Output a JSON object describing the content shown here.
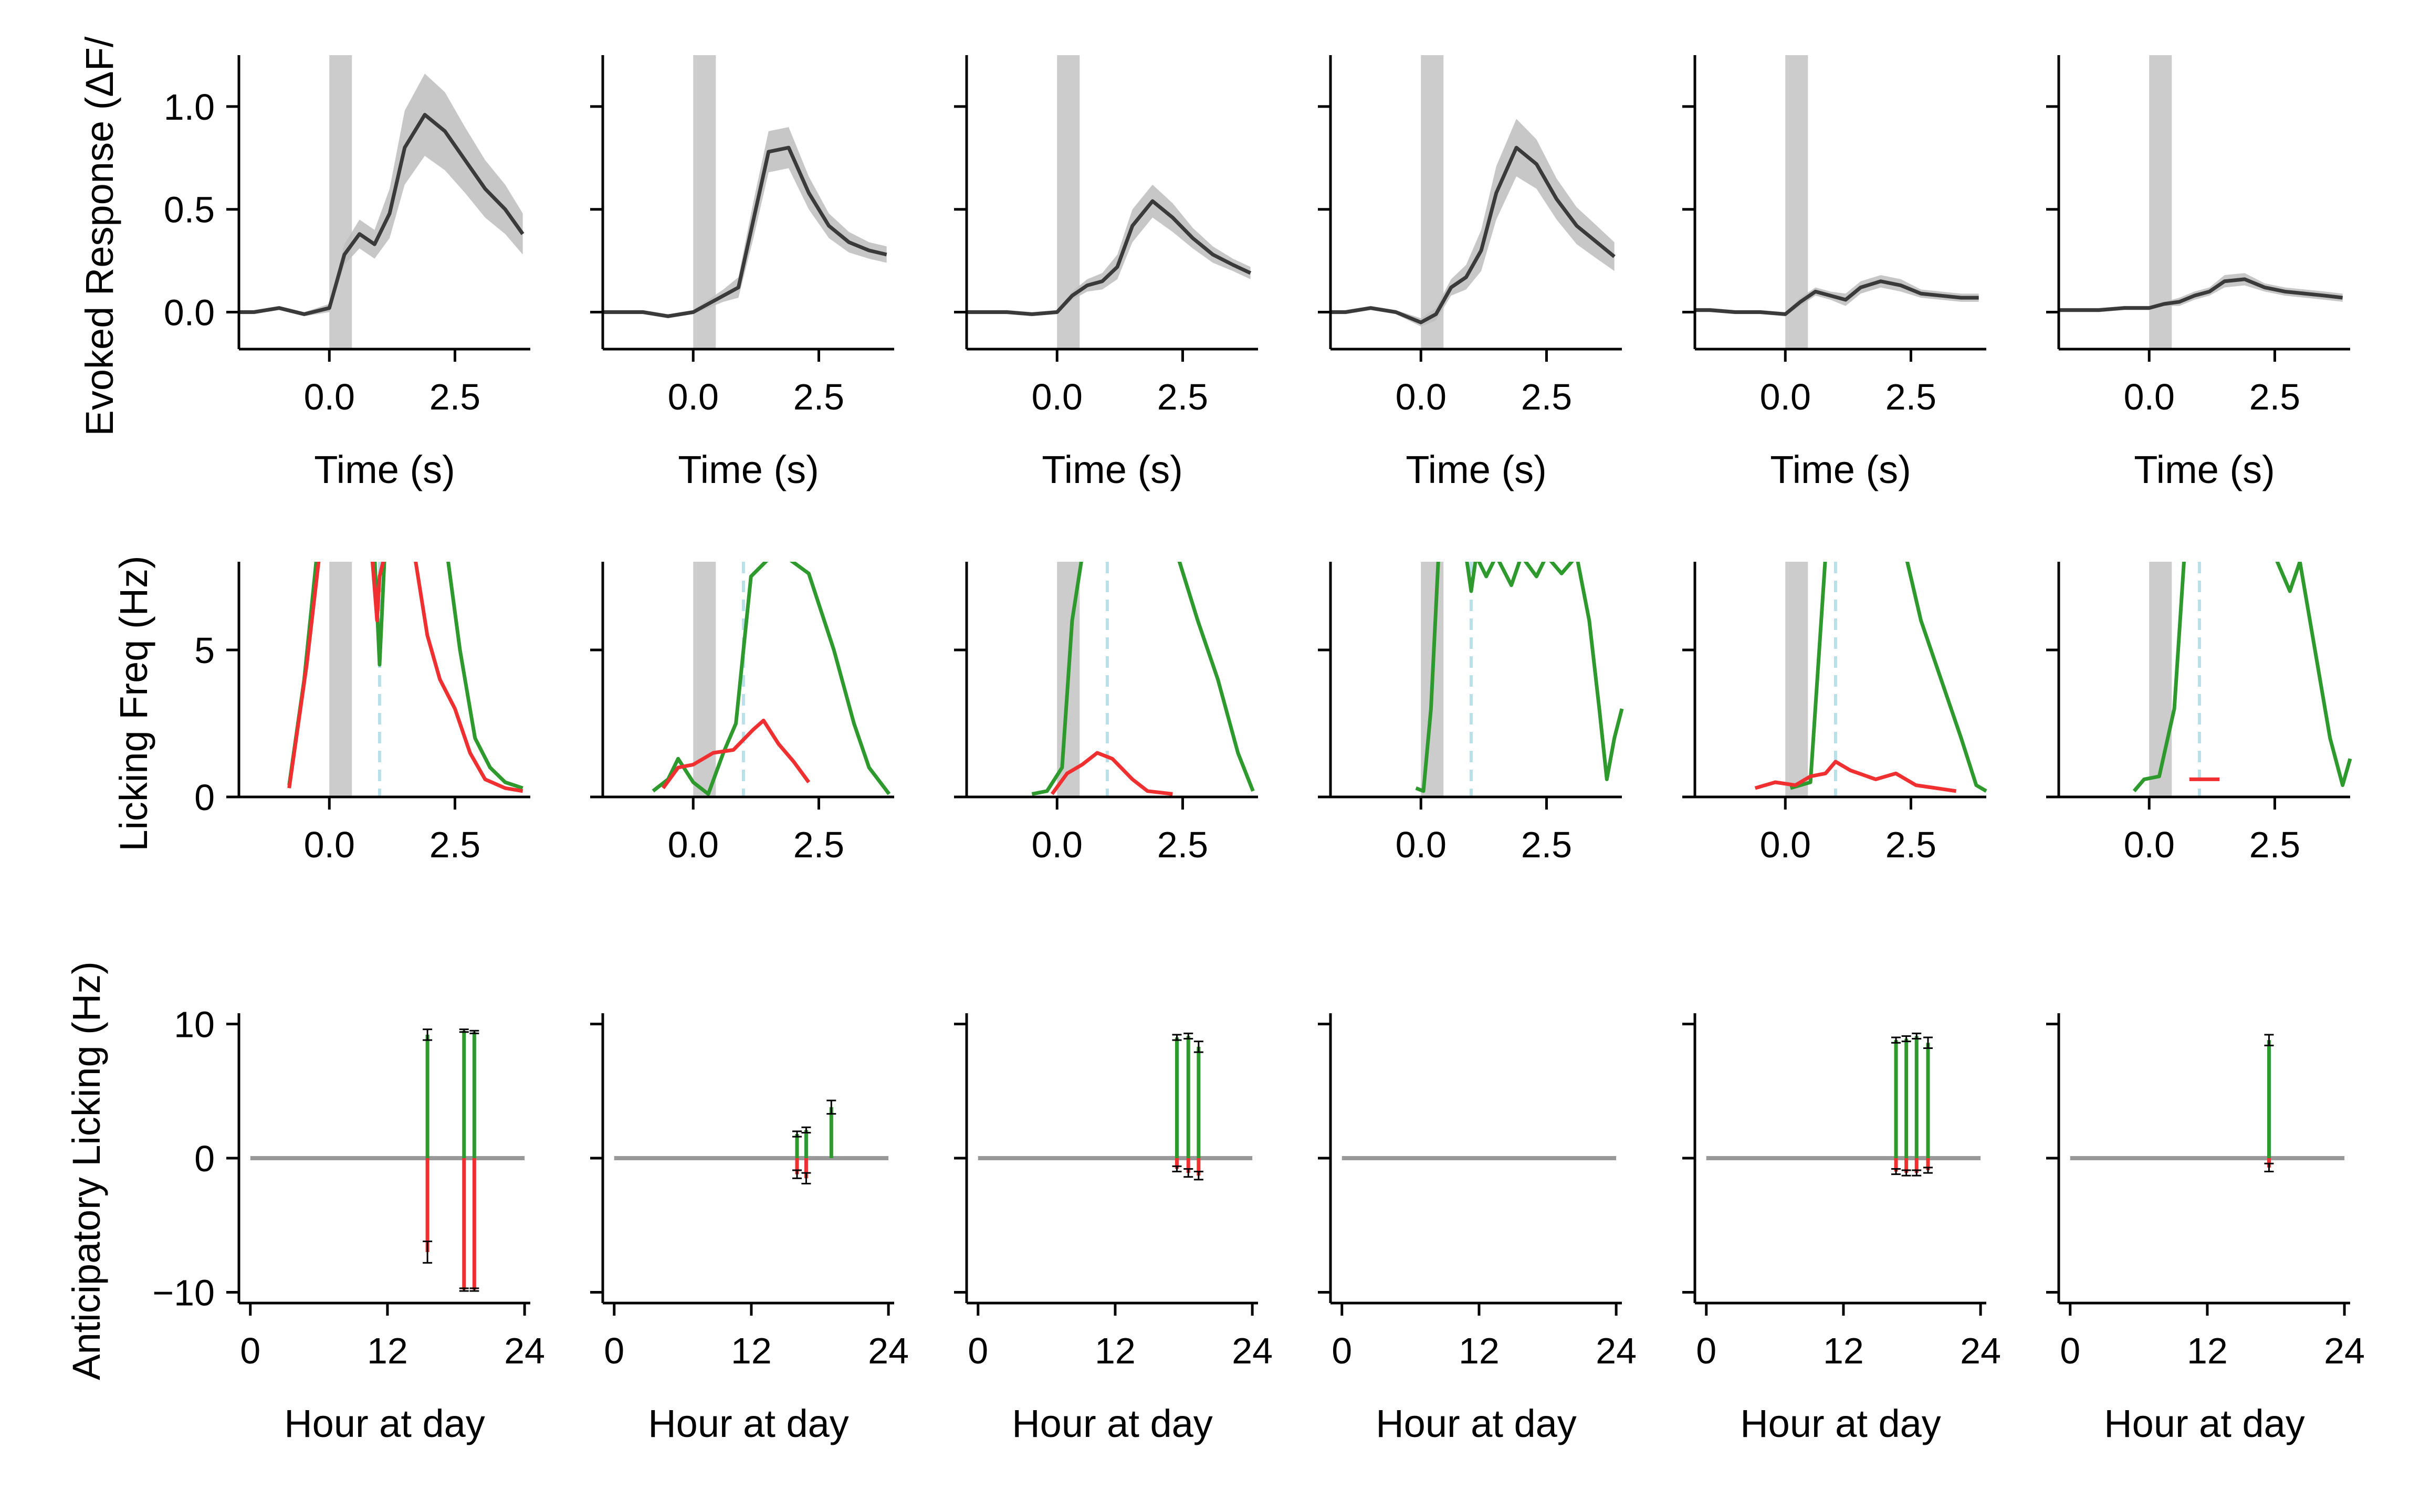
{
  "figure": {
    "rows": [
      {
        "ylabel": "Evoked Response (ΔF/",
        "xlabel": "Time (s)"
      },
      {
        "ylabel": "Licking Freq (Hz)",
        "xlabel": ""
      },
      {
        "ylabel": "Anticipatory Licking (Hz)",
        "xlabel": "Hour at day"
      }
    ],
    "panel_count": 6
  },
  "colors": {
    "trace": "#3a3a3a",
    "band": "#bdbdbd",
    "stim": "#cccccc",
    "rewarded": "#2e9a2e",
    "unrewarded": "#f03030",
    "cue_line": "#b9dfe8",
    "zero_line": "#999999"
  },
  "chart_data": [
    {
      "type": "line",
      "panel": "evoked-response",
      "xlim": [
        -1.8,
        4.0
      ],
      "ylim": [
        -0.18,
        1.25
      ],
      "xticks": [
        "0.0",
        "2.5"
      ],
      "xtick_values": [
        0.0,
        2.5
      ],
      "yticks": [
        "0.0",
        "0.5",
        "1.0"
      ],
      "ytick_values": [
        0.0,
        0.5,
        1.0
      ],
      "stim_window": [
        0.0,
        0.45
      ],
      "x": [
        -1.9,
        -1.5,
        -1.0,
        -0.5,
        0.0,
        0.3,
        0.6,
        0.9,
        1.2,
        1.5,
        1.9,
        2.3,
        2.7,
        3.1,
        3.5,
        3.85
      ],
      "series": [
        {
          "mean": [
            0.0,
            0.0,
            0.02,
            -0.01,
            0.02,
            0.28,
            0.38,
            0.33,
            0.48,
            0.8,
            0.96,
            0.88,
            0.74,
            0.6,
            0.5,
            0.38
          ],
          "sem": [
            0.01,
            0.01,
            0.01,
            0.01,
            0.02,
            0.05,
            0.07,
            0.07,
            0.12,
            0.18,
            0.2,
            0.19,
            0.16,
            0.14,
            0.12,
            0.1
          ]
        },
        {
          "mean": [
            0.0,
            0.0,
            0.0,
            -0.02,
            0.0,
            0.04,
            0.08,
            0.12,
            0.45,
            0.78,
            0.8,
            0.58,
            0.42,
            0.34,
            0.3,
            0.28
          ],
          "sem": [
            0.01,
            0.01,
            0.01,
            0.01,
            0.01,
            0.02,
            0.03,
            0.05,
            0.09,
            0.1,
            0.1,
            0.08,
            0.06,
            0.05,
            0.04,
            0.04
          ]
        },
        {
          "mean": [
            0.0,
            0.0,
            0.0,
            -0.01,
            0.0,
            0.08,
            0.13,
            0.15,
            0.22,
            0.42,
            0.54,
            0.46,
            0.36,
            0.28,
            0.23,
            0.19
          ],
          "sem": [
            0.01,
            0.01,
            0.01,
            0.01,
            0.01,
            0.02,
            0.03,
            0.04,
            0.06,
            0.08,
            0.08,
            0.07,
            0.05,
            0.04,
            0.03,
            0.03
          ]
        },
        {
          "mean": [
            0.0,
            0.0,
            0.02,
            0.0,
            -0.05,
            -0.01,
            0.12,
            0.17,
            0.3,
            0.58,
            0.8,
            0.72,
            0.55,
            0.42,
            0.34,
            0.27
          ],
          "sem": [
            0.01,
            0.01,
            0.01,
            0.01,
            0.02,
            0.03,
            0.04,
            0.06,
            0.1,
            0.13,
            0.14,
            0.12,
            0.1,
            0.09,
            0.08,
            0.07
          ]
        },
        {
          "mean": [
            0.01,
            0.01,
            0.0,
            0.0,
            -0.01,
            0.05,
            0.1,
            0.08,
            0.06,
            0.12,
            0.15,
            0.13,
            0.09,
            0.08,
            0.07,
            0.07
          ],
          "sem": [
            0.01,
            0.01,
            0.01,
            0.01,
            0.01,
            0.02,
            0.02,
            0.02,
            0.03,
            0.03,
            0.03,
            0.03,
            0.02,
            0.02,
            0.02,
            0.02
          ]
        },
        {
          "mean": [
            0.01,
            0.01,
            0.01,
            0.02,
            0.02,
            0.04,
            0.05,
            0.08,
            0.1,
            0.15,
            0.16,
            0.12,
            0.1,
            0.09,
            0.08,
            0.07
          ],
          "sem": [
            0.01,
            0.01,
            0.01,
            0.01,
            0.01,
            0.01,
            0.02,
            0.02,
            0.02,
            0.03,
            0.03,
            0.02,
            0.02,
            0.02,
            0.02,
            0.02
          ]
        }
      ]
    },
    {
      "type": "line",
      "panel": "licking-frequency",
      "xlim": [
        -1.8,
        4.0
      ],
      "ylim": [
        0,
        8
      ],
      "xticks": [
        "0.0",
        "2.5"
      ],
      "xtick_values": [
        0.0,
        2.5
      ],
      "yticks": [
        "0",
        "5"
      ],
      "ytick_values": [
        0,
        5
      ],
      "stim_window": [
        0.0,
        0.45
      ],
      "cue_line_x": 1.0,
      "series": [
        {
          "rewarded": [
            [
              -0.8,
              0.4
            ],
            [
              -0.5,
              4
            ],
            [
              -0.25,
              8.2
            ],
            [
              0.9,
              8.2
            ],
            [
              1.0,
              4.5
            ],
            [
              1.1,
              8.2
            ],
            [
              2.35,
              8.2
            ],
            [
              2.6,
              5
            ],
            [
              2.9,
              2
            ],
            [
              3.2,
              1
            ],
            [
              3.5,
              0.5
            ],
            [
              3.85,
              0.3
            ]
          ],
          "unrewarded": [
            [
              -0.8,
              0.3
            ],
            [
              -0.45,
              4.5
            ],
            [
              -0.2,
              8.2
            ],
            [
              0.85,
              8.2
            ],
            [
              0.95,
              6
            ],
            [
              1.0,
              7.5
            ],
            [
              1.1,
              8.2
            ],
            [
              1.7,
              8.2
            ],
            [
              1.95,
              5.5
            ],
            [
              2.2,
              4
            ],
            [
              2.5,
              3
            ],
            [
              2.8,
              1.5
            ],
            [
              3.1,
              0.6
            ],
            [
              3.5,
              0.3
            ],
            [
              3.85,
              0.2
            ]
          ]
        },
        {
          "rewarded": [
            [
              -0.8,
              0.2
            ],
            [
              -0.5,
              0.6
            ],
            [
              -0.3,
              1.3
            ],
            [
              0.0,
              0.5
            ],
            [
              0.3,
              0.1
            ],
            [
              0.6,
              1.5
            ],
            [
              0.85,
              2.5
            ],
            [
              1.0,
              5
            ],
            [
              1.15,
              7.5
            ],
            [
              1.5,
              8.1
            ],
            [
              1.9,
              8.1
            ],
            [
              2.3,
              7.6
            ],
            [
              2.8,
              5
            ],
            [
              3.2,
              2.5
            ],
            [
              3.5,
              1
            ],
            [
              3.9,
              0.1
            ]
          ],
          "unrewarded": [
            [
              -0.6,
              0.3
            ],
            [
              -0.3,
              1
            ],
            [
              0.0,
              1.1
            ],
            [
              0.4,
              1.5
            ],
            [
              0.8,
              1.6
            ],
            [
              1.2,
              2.3
            ],
            [
              1.4,
              2.6
            ],
            [
              1.7,
              1.8
            ],
            [
              2.0,
              1.2
            ],
            [
              2.3,
              0.5
            ]
          ]
        },
        {
          "rewarded": [
            [
              -0.5,
              0.1
            ],
            [
              -0.2,
              0.2
            ],
            [
              0.1,
              1
            ],
            [
              0.3,
              6
            ],
            [
              0.5,
              8.2
            ],
            [
              1.0,
              8.2
            ],
            [
              1.1,
              8.2
            ],
            [
              2.4,
              8.2
            ],
            [
              2.8,
              6
            ],
            [
              3.2,
              4
            ],
            [
              3.6,
              1.5
            ],
            [
              3.9,
              0.2
            ]
          ],
          "unrewarded": [
            [
              -0.1,
              0.1
            ],
            [
              0.2,
              0.8
            ],
            [
              0.5,
              1.1
            ],
            [
              0.8,
              1.5
            ],
            [
              1.1,
              1.3
            ],
            [
              1.5,
              0.6
            ],
            [
              1.8,
              0.2
            ],
            [
              2.3,
              0.1
            ]
          ]
        },
        {
          "rewarded": [
            [
              -0.1,
              0.3
            ],
            [
              0.05,
              0.2
            ],
            [
              0.2,
              3
            ],
            [
              0.35,
              8.2
            ],
            [
              0.9,
              8.2
            ],
            [
              1.0,
              7
            ],
            [
              1.1,
              8.2
            ],
            [
              1.3,
              7.5
            ],
            [
              1.5,
              8.2
            ],
            [
              1.8,
              7.2
            ],
            [
              2.0,
              8.2
            ],
            [
              2.3,
              7.5
            ],
            [
              2.5,
              8.2
            ],
            [
              2.8,
              7.6
            ],
            [
              3.1,
              8.2
            ],
            [
              3.35,
              6
            ],
            [
              3.55,
              3
            ],
            [
              3.7,
              0.6
            ],
            [
              3.85,
              2
            ],
            [
              4.0,
              3
            ]
          ],
          "unrewarded": []
        },
        {
          "rewarded": [
            [
              0.1,
              0.3
            ],
            [
              0.5,
              0.5
            ],
            [
              0.8,
              8.2
            ],
            [
              1.0,
              8.2
            ],
            [
              1.1,
              8.2
            ],
            [
              2.4,
              8.2
            ],
            [
              2.7,
              6
            ],
            [
              3.1,
              4
            ],
            [
              3.5,
              2
            ],
            [
              3.8,
              0.4
            ],
            [
              4.0,
              0.2
            ]
          ],
          "unrewarded": [
            [
              -0.6,
              0.3
            ],
            [
              -0.2,
              0.5
            ],
            [
              0.2,
              0.4
            ],
            [
              0.5,
              0.7
            ],
            [
              0.8,
              0.8
            ],
            [
              1.0,
              1.2
            ],
            [
              1.3,
              0.9
            ],
            [
              1.8,
              0.6
            ],
            [
              2.2,
              0.8
            ],
            [
              2.6,
              0.4
            ],
            [
              3.0,
              0.3
            ],
            [
              3.4,
              0.2
            ]
          ]
        },
        {
          "rewarded": [
            [
              -0.3,
              0.2
            ],
            [
              -0.1,
              0.6
            ],
            [
              0.2,
              0.7
            ],
            [
              0.5,
              3
            ],
            [
              0.7,
              8.2
            ],
            [
              1.0,
              8.2
            ],
            [
              1.1,
              8.2
            ],
            [
              2.5,
              8.2
            ],
            [
              2.8,
              7
            ],
            [
              3.0,
              8
            ],
            [
              3.3,
              5
            ],
            [
              3.6,
              2
            ],
            [
              3.85,
              0.4
            ],
            [
              4.0,
              1.3
            ]
          ],
          "unrewarded": [
            [
              0.8,
              0.6
            ],
            [
              1.0,
              0.6
            ],
            [
              1.3,
              0.6
            ],
            [
              1.4,
              0.6
            ]
          ]
        }
      ]
    },
    {
      "type": "bar",
      "panel": "anticipatory-licking",
      "xlim": [
        -1,
        24.5
      ],
      "ylim": [
        -10.8,
        10.8
      ],
      "xticks": [
        "0",
        "12",
        "24"
      ],
      "xtick_values": [
        0,
        12,
        24
      ],
      "yticks": [
        "−10",
        "0",
        "10"
      ],
      "ytick_values": [
        -10,
        0,
        10
      ],
      "series": [
        {
          "bars": [
            {
              "hour": 15.5,
              "go": 9.2,
              "go_err": 0.4,
              "nogo": -7.0,
              "nogo_err": 0.8
            },
            {
              "hour": 18.7,
              "go": 9.5,
              "go_err": 0.1,
              "nogo": -9.8,
              "nogo_err": 0.1
            },
            {
              "hour": 19.6,
              "go": 9.4,
              "go_err": 0.1,
              "nogo": -9.8,
              "nogo_err": 0.1
            }
          ]
        },
        {
          "bars": [
            {
              "hour": 16.0,
              "go": 1.8,
              "go_err": 0.2,
              "nogo": -1.2,
              "nogo_err": 0.3
            },
            {
              "hour": 16.8,
              "go": 2.1,
              "go_err": 0.2,
              "nogo": -1.5,
              "nogo_err": 0.4
            },
            {
              "hour": 19.0,
              "go": 3.8,
              "go_err": 0.5,
              "nogo": 0,
              "nogo_err": 0
            }
          ]
        },
        {
          "bars": [
            {
              "hour": 17.4,
              "go": 9.0,
              "go_err": 0.2,
              "nogo": -0.8,
              "nogo_err": 0.2
            },
            {
              "hour": 18.4,
              "go": 9.1,
              "go_err": 0.2,
              "nogo": -1.1,
              "nogo_err": 0.3
            },
            {
              "hour": 19.3,
              "go": 8.3,
              "go_err": 0.4,
              "nogo": -1.3,
              "nogo_err": 0.3
            }
          ]
        },
        {
          "bars": []
        },
        {
          "bars": [
            {
              "hour": 16.6,
              "go": 8.8,
              "go_err": 0.2,
              "nogo": -1.0,
              "nogo_err": 0.2
            },
            {
              "hour": 17.5,
              "go": 8.9,
              "go_err": 0.2,
              "nogo": -1.1,
              "nogo_err": 0.2
            },
            {
              "hour": 18.4,
              "go": 9.1,
              "go_err": 0.2,
              "nogo": -1.1,
              "nogo_err": 0.2
            },
            {
              "hour": 19.4,
              "go": 8.6,
              "go_err": 0.4,
              "nogo": -0.9,
              "nogo_err": 0.2
            }
          ]
        },
        {
          "bars": [
            {
              "hour": 17.4,
              "go": 8.8,
              "go_err": 0.4,
              "nogo": -0.7,
              "nogo_err": 0.3
            }
          ]
        }
      ]
    }
  ]
}
